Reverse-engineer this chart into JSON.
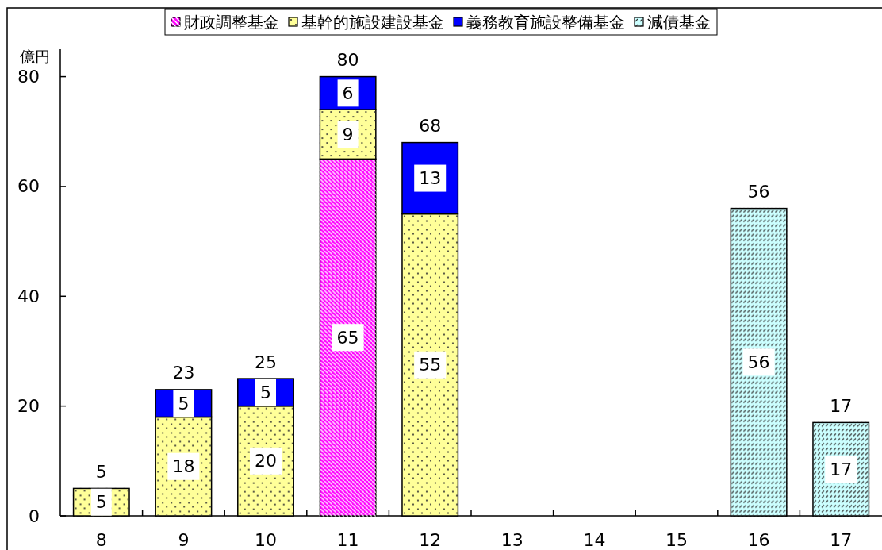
{
  "chart_data": {
    "type": "bar",
    "stacked": true,
    "categories": [
      "8",
      "9",
      "10",
      "11",
      "12",
      "13",
      "14",
      "15",
      "16",
      "17"
    ],
    "series": [
      {
        "name": "財政調整基金",
        "color": "#ff00ff",
        "values": [
          null,
          null,
          null,
          65,
          null,
          null,
          null,
          null,
          null,
          null
        ]
      },
      {
        "name": "基幹的施設建設基金",
        "color": "#ffff99",
        "values": [
          5,
          18,
          20,
          9,
          55,
          null,
          null,
          null,
          null,
          null
        ]
      },
      {
        "name": "義務教育施設整備基金",
        "color": "#0000ff",
        "values": [
          null,
          5,
          5,
          6,
          13,
          null,
          null,
          null,
          null,
          null
        ]
      },
      {
        "name": "減債基金",
        "color": "#ccffff",
        "values": [
          null,
          null,
          null,
          null,
          null,
          null,
          null,
          null,
          56,
          17
        ]
      }
    ],
    "ylabel": "億円",
    "ylim": [
      0,
      85
    ],
    "yticks": [
      0,
      20,
      40,
      60,
      80
    ],
    "data_labels": true,
    "totals": [
      "5",
      "23",
      "25",
      "80",
      "68",
      null,
      null,
      null,
      "56",
      "17"
    ],
    "legend": "top"
  }
}
